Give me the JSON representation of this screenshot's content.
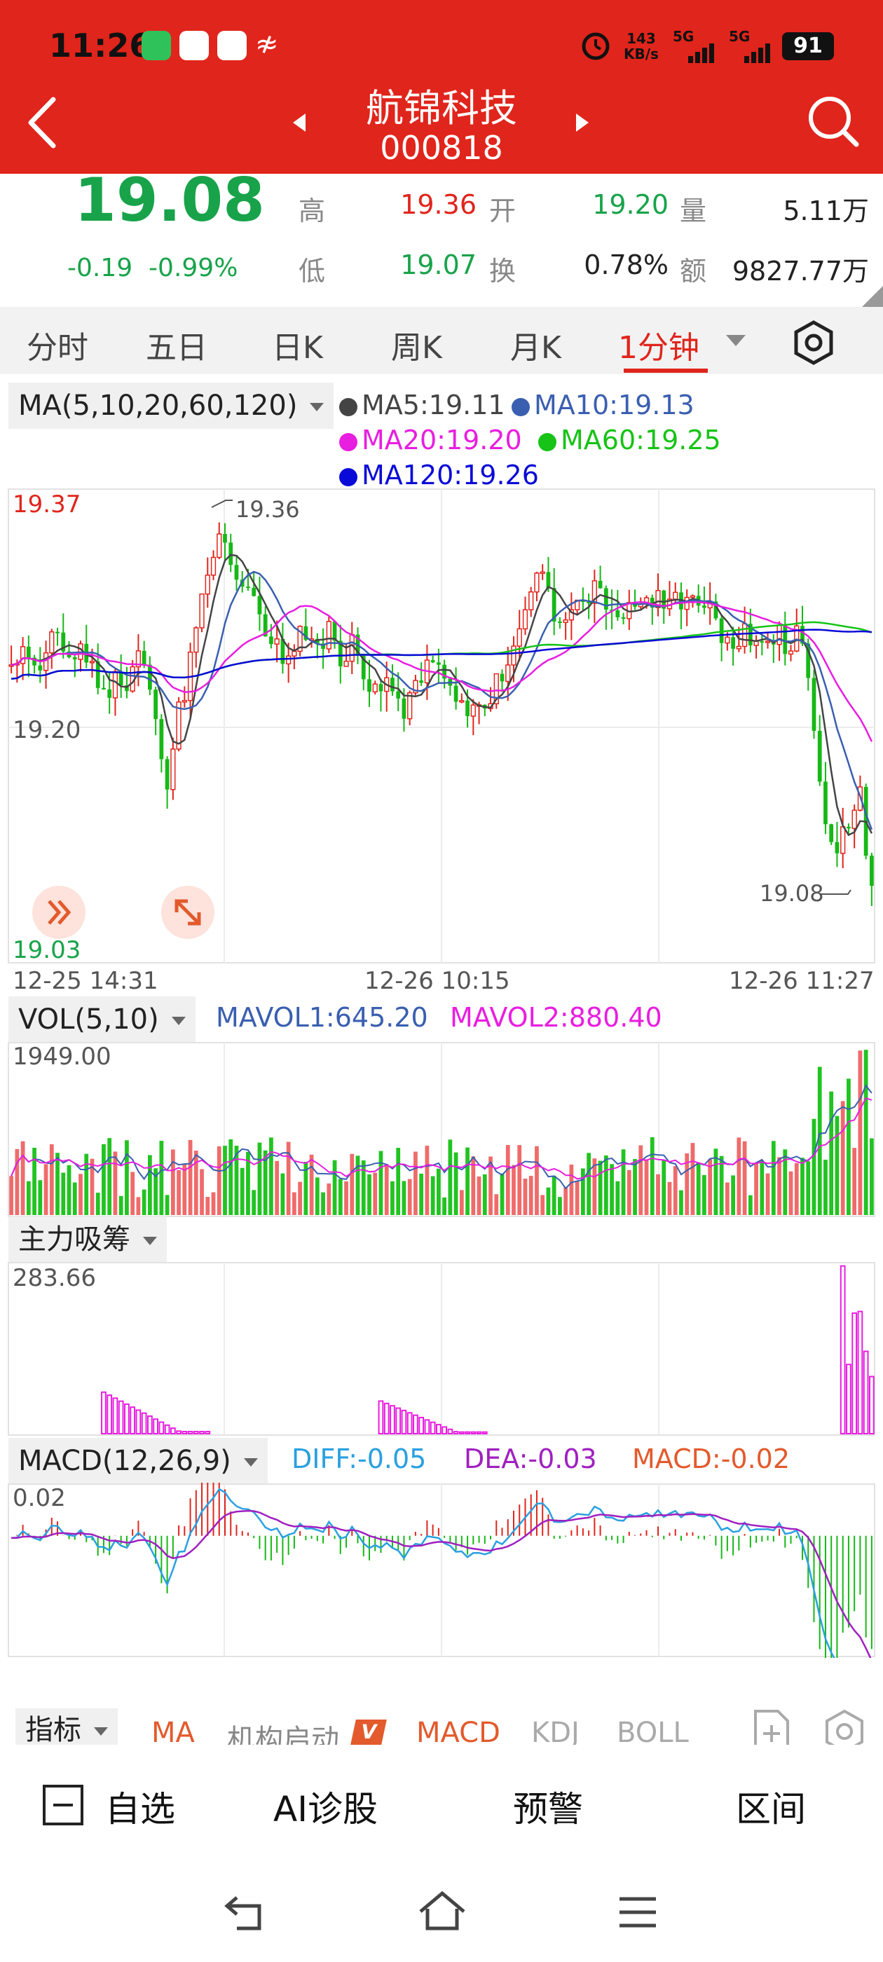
{
  "status": {
    "time": "11:26",
    "net_speed_value": "143",
    "net_speed_unit": "KB/s",
    "sig1": "5G",
    "sig2": "5G",
    "battery": "91"
  },
  "header": {
    "name": "航锦科技",
    "code": "000818"
  },
  "quote": {
    "price": "19.08",
    "change": "-0.19",
    "change_pct": "-0.99%",
    "high_label": "高",
    "high": "19.36",
    "open_label": "开",
    "open": "19.20",
    "vol_label": "量",
    "vol": "5.11万",
    "low_label": "低",
    "low": "19.07",
    "turnover_label": "换",
    "turnover": "0.78%",
    "amount_label": "额",
    "amount": "9827.77万"
  },
  "tabs": [
    "分时",
    "五日",
    "日K",
    "周K",
    "月K",
    "1分钟"
  ],
  "ma": {
    "selector": "MA(5,10,20,60,120)",
    "items": [
      {
        "label": "MA5:19.11",
        "color": "#444444"
      },
      {
        "label": "MA10:19.13",
        "color": "#3a5fb0"
      },
      {
        "label": "MA20:19.20",
        "color": "#e81ee0"
      },
      {
        "label": "MA60:19.25",
        "color": "#16c316"
      },
      {
        "label": "MA120:19.26",
        "color": "#0a0ad8"
      }
    ]
  },
  "price_axis": {
    "top": "19.37",
    "mid": "19.20",
    "bottom": "19.03",
    "high_mark": "19.36",
    "low_mark": "19.08"
  },
  "time_axis": [
    "12-25 14:31",
    "12-26 10:15",
    "12-26 11:27"
  ],
  "vol": {
    "selector": "VOL(5,10)",
    "mavol1": "MAVOL1:645.20",
    "mavol2": "MAVOL2:880.40",
    "max": "1949.00"
  },
  "main_force": {
    "selector": "主力吸筹",
    "max": "283.66"
  },
  "macd": {
    "selector": "MACD(12,26,9)",
    "diff": "DIFF:-0.05",
    "dea": "DEA:-0.03",
    "macd": "MACD:-0.02",
    "max": "0.02"
  },
  "indicator_tabs": {
    "label": "指标",
    "items": [
      "MA",
      "机构启动",
      "MACD",
      "KDJ",
      "BOLL"
    ],
    "vip": "V"
  },
  "actions": {
    "watchlist": "自选",
    "ai": "AI诊股",
    "alert": "预警",
    "range": "区间"
  },
  "chart_data": {
    "type": "candlestick",
    "price_range": [
      19.03,
      19.37
    ],
    "overlays": [
      {
        "name": "MA5",
        "color": "#444444"
      },
      {
        "name": "MA10",
        "color": "#3a5fb0"
      },
      {
        "name": "MA20",
        "color": "#e81ee0"
      },
      {
        "name": "MA60",
        "color": "#16c316"
      },
      {
        "name": "MA120",
        "color": "#0a0ad8"
      }
    ],
    "close_path": [
      19.25,
      19.26,
      19.24,
      19.26,
      19.27,
      19.25,
      19.26,
      19.24,
      19.22,
      19.24,
      19.23,
      19.26,
      19.22,
      19.15,
      19.2,
      19.24,
      19.3,
      19.33,
      19.34,
      19.31,
      19.3,
      19.28,
      19.27,
      19.25,
      19.26,
      19.27,
      19.26,
      19.27,
      19.25,
      19.26,
      19.24,
      19.22,
      19.23,
      19.21,
      19.22,
      19.24,
      19.25,
      19.24,
      19.22,
      19.21,
      19.22,
      19.23,
      19.24,
      19.27,
      19.3,
      19.31,
      19.28,
      19.27,
      19.29,
      19.3,
      19.3,
      19.28,
      19.29,
      19.28,
      19.3,
      19.29,
      19.3,
      19.28,
      19.3,
      19.29,
      19.27,
      19.26,
      19.27,
      19.26,
      19.27,
      19.27,
      19.26,
      19.27,
      19.2,
      19.14,
      19.1,
      19.13,
      19.15,
      19.08
    ],
    "volume_range": [
      0,
      1949
    ],
    "main_force_range": [
      0,
      283.66
    ],
    "macd_range": [
      -0.05,
      0.02
    ]
  }
}
